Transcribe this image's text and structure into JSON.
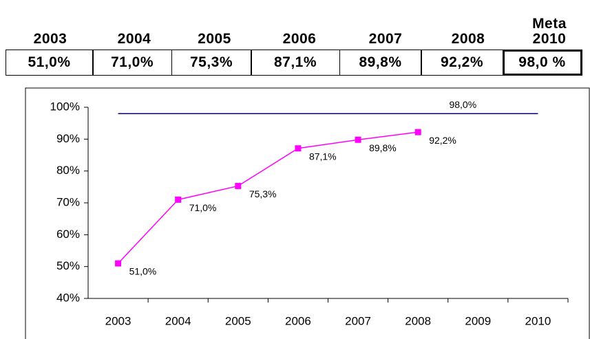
{
  "table": {
    "header": [
      "2003",
      "2004",
      "2005",
      "2006",
      "2007",
      "2008",
      "Meta 2010"
    ],
    "rows": [
      [
        "51,0%",
        "71,0%",
        "75,3%",
        "87,1%",
        "89,8%",
        "92,2%",
        "98,0 %"
      ]
    ]
  },
  "chart_data": {
    "type": "line",
    "categories": [
      "2003",
      "2004",
      "2005",
      "2006",
      "2007",
      "2008",
      "2009",
      "2010"
    ],
    "series": [
      {
        "color": "#ff00ff",
        "values": [
          51.0,
          71.0,
          75.3,
          87.1,
          89.8,
          92.2,
          null,
          null
        ],
        "value_labels": [
          "51,0%",
          "71,0%",
          "75,3%",
          "87,1%",
          "89,8%",
          "92,2%",
          null,
          null
        ],
        "markers": true
      },
      {
        "color": "#000080",
        "values": [
          98,
          98,
          98,
          98,
          98,
          98,
          98,
          98
        ],
        "value_labels": [
          null,
          null,
          null,
          null,
          null,
          null,
          "98,0%",
          null
        ],
        "markers": false
      }
    ],
    "ylim": [
      40,
      100
    ],
    "yticks": [
      {
        "value": 40,
        "label": "40%"
      },
      {
        "value": 50,
        "label": "50%"
      },
      {
        "value": 60,
        "label": "60%"
      },
      {
        "value": 70,
        "label": "70%"
      },
      {
        "value": 80,
        "label": "80%"
      },
      {
        "value": 90,
        "label": "90%"
      },
      {
        "value": 100,
        "label": "100%"
      }
    ],
    "grid": false
  }
}
